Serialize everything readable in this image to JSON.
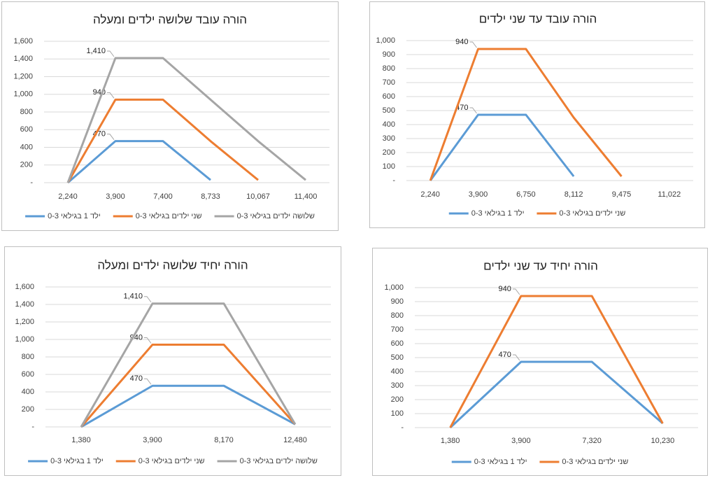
{
  "chart_data": [
    {
      "type": "line",
      "title": "הורה עובד שלושה ילדים ומעלה",
      "categories": [
        "2,240",
        "3,900",
        "7,400",
        "8,733",
        "10,067",
        "11,400"
      ],
      "series": [
        {
          "name": "ילד 1 בגילאי 0-3",
          "color": "#5b9bd5",
          "values": [
            0,
            470,
            470,
            30,
            null,
            null
          ],
          "value_labels": [
            null,
            "470",
            null,
            null,
            null,
            null
          ]
        },
        {
          "name": "שני ילדים בגילאי 0-3",
          "color": "#ed7d31",
          "values": [
            0,
            940,
            940,
            470,
            30,
            null
          ],
          "value_labels": [
            null,
            "940",
            null,
            null,
            null,
            null
          ]
        },
        {
          "name": "שלושה ילדים בגילאי 0-3",
          "color": "#a5a5a5",
          "values": [
            0,
            1410,
            1410,
            940,
            470,
            30
          ],
          "value_labels": [
            null,
            "1,410",
            null,
            null,
            null,
            null
          ]
        }
      ],
      "ylim": [
        0,
        1600
      ],
      "yticks": [
        {
          "value": 0,
          "label": "-"
        },
        200,
        400,
        600,
        800,
        {
          "value": 1000,
          "label": "1,000"
        },
        {
          "value": 1200,
          "label": "1,200"
        },
        {
          "value": 1400,
          "label": "1,400"
        },
        {
          "value": 1600,
          "label": "1,600"
        }
      ],
      "grid": true,
      "legend": "bottom"
    },
    {
      "type": "line",
      "title": "הורה עובד עד שני ילדים",
      "categories": [
        "2,240",
        "3,900",
        "6,750",
        "8,112",
        "9,475",
        "11,022"
      ],
      "series": [
        {
          "name": "ילד 1 בגילאי 0-3",
          "color": "#5b9bd5",
          "values": [
            0,
            470,
            470,
            30,
            null,
            null
          ],
          "value_labels": [
            null,
            "470",
            null,
            null,
            null,
            null
          ]
        },
        {
          "name": "שני ילדים בגילאי 0-3",
          "color": "#ed7d31",
          "values": [
            0,
            940,
            940,
            450,
            30,
            null
          ],
          "value_labels": [
            null,
            "940",
            null,
            null,
            null,
            null
          ]
        }
      ],
      "ylim": [
        0,
        1000
      ],
      "yticks": [
        {
          "value": 0,
          "label": "-"
        },
        100,
        200,
        300,
        400,
        500,
        600,
        700,
        800,
        900,
        {
          "value": 1000,
          "label": "1,000"
        }
      ],
      "grid": true,
      "legend": "bottom"
    },
    {
      "type": "line",
      "title": "הורה יחיד שלושה ילדים ומעלה",
      "categories": [
        "1,380",
        "3,900",
        "8,170",
        "12,480"
      ],
      "series": [
        {
          "name": "ילד 1 בגילאי 0-3",
          "color": "#5b9bd5",
          "values": [
            0,
            470,
            470,
            30
          ],
          "value_labels": [
            null,
            "470",
            null,
            null
          ]
        },
        {
          "name": "שני ילדים בגילאי 0-3",
          "color": "#ed7d31",
          "values": [
            0,
            940,
            940,
            30
          ],
          "value_labels": [
            null,
            "940",
            null,
            null
          ]
        },
        {
          "name": "שלושה ילדים בגילאי 0-3",
          "color": "#a5a5a5",
          "values": [
            0,
            1410,
            1410,
            30
          ],
          "value_labels": [
            null,
            "1,410",
            null,
            null
          ]
        }
      ],
      "ylim": [
        0,
        1600
      ],
      "yticks": [
        {
          "value": 0,
          "label": "-"
        },
        200,
        400,
        600,
        800,
        {
          "value": 1000,
          "label": "1,000"
        },
        {
          "value": 1200,
          "label": "1,200"
        },
        {
          "value": 1400,
          "label": "1,400"
        },
        {
          "value": 1600,
          "label": "1,600"
        }
      ],
      "grid": true,
      "legend": "bottom"
    },
    {
      "type": "line",
      "title": "הורה יחיד עד שני ילדים",
      "categories": [
        "1,380",
        "3,900",
        "7,320",
        "10,230"
      ],
      "series": [
        {
          "name": "ילד 1 בגילאי 0-3",
          "color": "#5b9bd5",
          "values": [
            0,
            470,
            470,
            30
          ],
          "value_labels": [
            null,
            "470",
            null,
            null
          ]
        },
        {
          "name": "שני ילדים בגילאי 0-3",
          "color": "#ed7d31",
          "values": [
            0,
            940,
            940,
            30
          ],
          "value_labels": [
            null,
            "940",
            null,
            null
          ]
        }
      ],
      "ylim": [
        0,
        1000
      ],
      "yticks": [
        {
          "value": 0,
          "label": "-"
        },
        100,
        200,
        300,
        400,
        500,
        600,
        700,
        800,
        900,
        {
          "value": 1000,
          "label": "1,000"
        }
      ],
      "grid": true,
      "legend": "bottom"
    }
  ]
}
